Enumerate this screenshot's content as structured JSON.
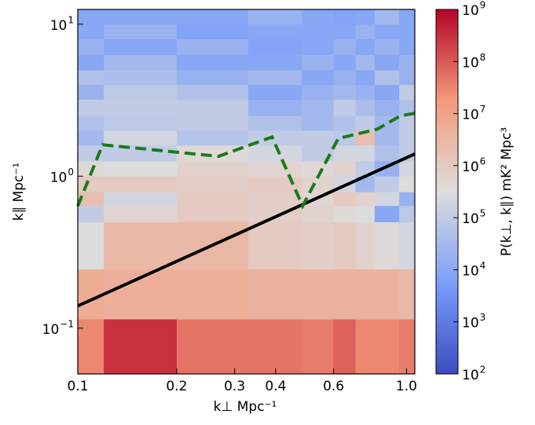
{
  "chart_data": {
    "type": "heatmap",
    "xlabel": "k⊥ Mpc⁻¹",
    "ylabel": "k∥ Mpc⁻¹",
    "colorbar_label": "P(k⊥, k∥) mK² Mpc³",
    "xscale": "log",
    "yscale": "log",
    "cscale": "log",
    "colormap": "coolwarm",
    "xlim": [
      0.1,
      1.06
    ],
    "ylim": [
      0.05,
      12.5
    ],
    "clim": [
      100,
      1000000000
    ],
    "xticks": [
      0.1,
      0.2,
      0.3,
      0.4,
      0.6,
      {
        "value": 1,
        "label": "1.0"
      }
    ],
    "yticks": [
      {
        "value": 0.1,
        "label": "10",
        "exponent": "−1"
      },
      {
        "value": 1,
        "label": "10",
        "exponent": "0"
      },
      {
        "value": 10,
        "label": "10",
        "exponent": "1"
      }
    ],
    "cticks": [
      {
        "value": 100,
        "label": "10",
        "exponent": "2"
      },
      {
        "value": 1000,
        "label": "10",
        "exponent": "3"
      },
      {
        "value": 10000,
        "label": "10",
        "exponent": "4"
      },
      {
        "value": 100000,
        "label": "10",
        "exponent": "5"
      },
      {
        "value": 1000000,
        "label": "10",
        "exponent": "6"
      },
      {
        "value": 10000000,
        "label": "10",
        "exponent": "7"
      },
      {
        "value": 100000000,
        "label": "10",
        "exponent": "8"
      },
      {
        "value": 1000000000,
        "label": "10",
        "exponent": "9"
      }
    ],
    "x_edges": [
      0.1,
      0.12,
      0.2,
      0.33,
      0.48,
      0.6,
      0.7,
      0.8,
      0.95,
      1.06
    ],
    "y_edges": [
      0.05,
      0.115,
      0.245,
      0.5,
      0.64,
      0.79,
      1.0,
      1.26,
      1.6,
      2.0,
      2.5,
      3.2,
      4.0,
      5.0,
      6.3,
      8.0,
      10,
      12.5
    ],
    "z": [
      [
        30000000.0,
        300000000.0,
        50000000.0,
        50000000.0,
        40000000.0,
        80000000.0,
        30000000.0,
        30000000.0,
        40000000.0
      ],
      [
        6000000.0,
        5000000.0,
        5000000.0,
        4000000.0,
        4000000.0,
        4000000.0,
        4000000.0,
        4000000.0,
        3000000.0
      ],
      [
        300000.0,
        3000000.0,
        3000000.0,
        1000000.0,
        800000.0,
        1000000.0,
        600000.0,
        400000.0,
        200000.0
      ],
      [
        100000.0,
        500000.0,
        1000000.0,
        800000.0,
        600000.0,
        400000.0,
        300000.0,
        10000.0,
        80000.0
      ],
      [
        2000000.0,
        200000.0,
        1000000.0,
        800000.0,
        500000.0,
        1000000.0,
        600000.0,
        200000.0,
        20000.0
      ],
      [
        1000000.0,
        1000000.0,
        800000.0,
        1000000.0,
        600000.0,
        200000.0,
        30000.0,
        100000.0,
        300000.0
      ],
      [
        400000.0,
        300000.0,
        600000.0,
        500000.0,
        400000.0,
        600000.0,
        100000.0,
        20000.0,
        200000.0
      ],
      [
        100000.0,
        100000.0,
        400000.0,
        200000.0,
        100000.0,
        200000.0,
        200000.0,
        50000.0,
        100000.0
      ],
      [
        30000.0,
        200000.0,
        60000.0,
        100000.0,
        100000.0,
        80000.0,
        2000000.0,
        30000.0,
        100000.0
      ],
      [
        50000.0,
        80000.0,
        100000.0,
        50000.0,
        30000.0,
        50000.0,
        100000.0,
        30000.0,
        100000.0
      ],
      [
        100000.0,
        100000.0,
        100000.0,
        20000.0,
        30000.0,
        100000.0,
        40000.0,
        20000.0,
        50000.0
      ],
      [
        20000.0,
        80000.0,
        50000.0,
        10000.0,
        20000.0,
        30000.0,
        20000.0,
        10000.0,
        100000.0
      ],
      [
        50000.0,
        40000.0,
        20000.0,
        30000.0,
        10000.0,
        20000.0,
        10000.0,
        50000.0,
        20000.0
      ],
      [
        10000.0,
        30000.0,
        10000.0,
        10000.0,
        20000.0,
        10000.0,
        30000.0,
        10000.0,
        20000.0
      ],
      [
        20000.0,
        10000.0,
        20000.0,
        8000.0,
        10000.0,
        20000.0,
        10000.0,
        20000.0,
        10000.0
      ],
      [
        10000.0,
        20000.0,
        8000.0,
        10000.0,
        10000.0,
        10000.0,
        20000.0,
        10000.0,
        10000.0
      ],
      [
        10000.0,
        10000.0,
        10000.0,
        20000.0,
        10000.0,
        8000.0,
        10000.0,
        30000.0,
        10000.0
      ]
    ],
    "lines": [
      {
        "color": "#000000",
        "style": "solid",
        "x": [
          0.1,
          1.06
        ],
        "y": [
          0.14,
          1.4
        ]
      },
      {
        "color": "#1a7a1a",
        "style": "dashed",
        "x": [
          0.1,
          0.119,
          0.268,
          0.39,
          0.483,
          0.62,
          0.815,
          0.96,
          1.06
        ],
        "y": [
          0.636,
          1.61,
          1.35,
          1.81,
          0.636,
          1.77,
          2.04,
          2.5,
          2.59
        ]
      }
    ]
  }
}
